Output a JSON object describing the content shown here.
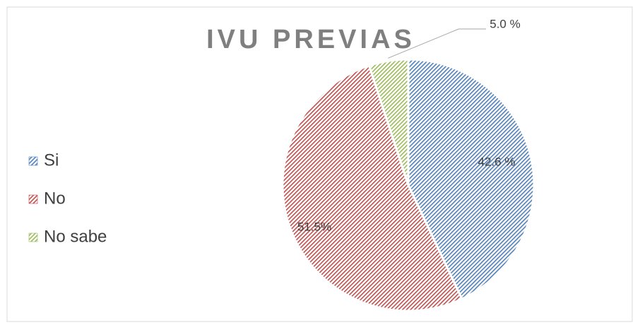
{
  "chart_data": {
    "type": "pie",
    "title": "IVU PREVIAS",
    "categories": [
      "Si",
      "No",
      "No sabe"
    ],
    "values": [
      42.6,
      51.5,
      5.0
    ],
    "value_labels": [
      "42.6 %",
      "51.5%",
      "5.0 %"
    ],
    "colors": [
      "#4f81bd",
      "#c0504d",
      "#9bbb59"
    ],
    "legend": "left"
  }
}
